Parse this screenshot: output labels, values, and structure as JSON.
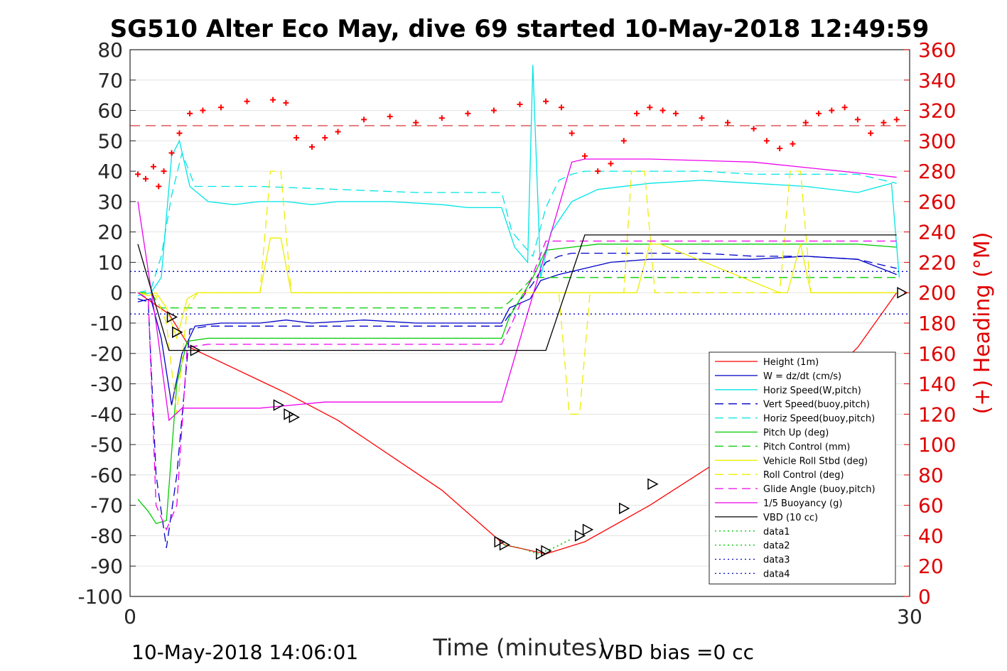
{
  "chart_data": {
    "type": "line",
    "title": "SG510 Alter Eco May, dive 69 started 10-May-2018 12:49:59",
    "xlabel": "Time (minutes)",
    "ylabel": "",
    "y2label": "(+) Heading (°M)",
    "xlim": [
      0,
      30
    ],
    "ylim": [
      -100,
      80
    ],
    "y2lim": [
      0,
      360
    ],
    "xticks": [
      0,
      30
    ],
    "yticks": [
      80,
      70,
      60,
      50,
      40,
      30,
      20,
      10,
      0,
      -10,
      -20,
      -30,
      -40,
      -50,
      -60,
      -70,
      -80,
      -90,
      -100
    ],
    "y2ticks": [
      360,
      340,
      320,
      300,
      280,
      260,
      240,
      220,
      200,
      180,
      160,
      140,
      120,
      100,
      80,
      60,
      40,
      20,
      0
    ],
    "grid": true,
    "legend_position": "bottom-right",
    "heading_reference": 310,
    "series": [
      {
        "name": "Height (1m)",
        "color": "#ff0000",
        "style": "solid",
        "x": [
          0.3,
          1.5,
          2.3,
          6.0,
          8.0,
          12.0,
          14.4,
          16.0,
          17.5,
          20.0,
          24.0,
          26.0,
          28.0,
          29.5
        ],
        "y": [
          0,
          -7,
          -18,
          -33,
          -42,
          -65,
          -83,
          -86,
          -82,
          -70,
          -48,
          -35,
          -18,
          0
        ]
      },
      {
        "name": "W = dz/dt (cm/s)",
        "color": "#0000c8",
        "style": "solid",
        "x": [
          0.3,
          0.8,
          1.2,
          1.6,
          2.0,
          2.5,
          3.5,
          5.0,
          6.0,
          7.0,
          9.0,
          11.0,
          13.0,
          14.3,
          14.6,
          15.4,
          15.8,
          16.5,
          17.5,
          18.5,
          20.0,
          22.0,
          24.0,
          26.0,
          28.0,
          29.5
        ],
        "y": [
          -3,
          -2,
          -15,
          -37,
          -20,
          -11,
          -10,
          -10,
          -9,
          -10,
          -9,
          -10,
          -10,
          -10,
          -5,
          -2,
          4,
          6,
          8,
          10,
          11,
          11,
          11,
          12,
          11,
          6
        ]
      },
      {
        "name": "Horiz Speed(W,pitch)",
        "color": "#00e5e5",
        "style": "solid",
        "x": [
          0.3,
          0.8,
          1.2,
          1.6,
          1.9,
          2.3,
          3.0,
          4.0,
          5.0,
          6.0,
          7.0,
          8.0,
          10.0,
          12.0,
          13.0,
          14.3,
          14.8,
          15.3,
          15.5,
          15.8,
          16.2,
          17.0,
          18.0,
          20.0,
          22.0,
          24.0,
          26.0,
          28.0,
          29.3,
          29.6
        ],
        "y": [
          -1,
          0,
          5,
          45,
          50,
          35,
          30,
          29,
          30,
          30,
          29,
          30,
          30,
          29,
          28,
          28,
          15,
          10,
          75,
          5,
          20,
          30,
          34,
          36,
          37,
          36,
          35,
          33,
          36,
          5
        ]
      },
      {
        "name": "Vert Speed(buoy,pitch)",
        "color": "#0000c8",
        "style": "dashed",
        "x": [
          0.3,
          0.7,
          1.0,
          1.4,
          1.8,
          2.3,
          3.0,
          5.0,
          8.0,
          11.0,
          13.0,
          14.3,
          14.7,
          15.5,
          16.0,
          16.5,
          17.0,
          18.0,
          20.0,
          22.0,
          24.0,
          26.0,
          28.0,
          29.5
        ],
        "y": [
          -2,
          -3,
          -60,
          -84,
          -60,
          -12,
          -11,
          -11,
          -11,
          -11,
          -11,
          -11,
          -6,
          3,
          10,
          12,
          13,
          13,
          13,
          13,
          12,
          12,
          11,
          8
        ]
      },
      {
        "name": "Horiz Speed(buoy,pitch)",
        "color": "#00e5e5",
        "style": "dashed",
        "x": [
          0.3,
          0.8,
          1.2,
          1.6,
          2.0,
          2.5,
          3.0,
          5.0,
          8.0,
          11.0,
          13.0,
          14.3,
          14.7,
          15.5,
          16.0,
          16.5,
          17.0,
          17.5,
          18.0,
          20.0,
          22.0,
          24.0,
          26.0,
          28.0,
          29.5
        ],
        "y": [
          0,
          1,
          12,
          32,
          46,
          35,
          35,
          35,
          34,
          33,
          33,
          33,
          20,
          12,
          28,
          37,
          39,
          40,
          40,
          40,
          40,
          39,
          39,
          39,
          36
        ]
      },
      {
        "name": "Pitch Up (deg)",
        "color": "#00cc00",
        "style": "solid",
        "x": [
          0.3,
          0.7,
          1.0,
          1.4,
          1.8,
          2.2,
          3.0,
          5.0,
          8.0,
          11.0,
          13.0,
          14.3,
          14.6,
          15.5,
          16.0,
          17.0,
          18.0,
          20.0,
          22.0,
          24.0,
          26.0,
          28.0,
          29.5
        ],
        "y": [
          -68,
          -72,
          -76,
          -75,
          -30,
          -16,
          -15,
          -15,
          -15,
          -15,
          -15,
          -15,
          -8,
          5,
          14,
          15,
          16,
          16,
          16,
          16,
          16,
          16,
          15
        ]
      },
      {
        "name": "Pitch Control (mm)",
        "color": "#00cc00",
        "style": "dashed",
        "x": [
          0.3,
          0.8,
          1.2,
          1.6,
          2.0,
          3.0,
          6.0,
          10.0,
          14.3,
          14.6,
          15.5,
          16.5,
          20.0,
          24.0,
          28.0,
          29.5
        ],
        "y": [
          0,
          0,
          -5,
          -5,
          -5,
          -5,
          -5,
          -5,
          -5,
          -3,
          5,
          5,
          5,
          5,
          5,
          5
        ]
      },
      {
        "name": "Vehicle Roll Stbd (deg)",
        "color": "#eeee00",
        "style": "solid",
        "x": [
          0.3,
          0.7,
          1.0,
          1.4,
          1.8,
          2.2,
          2.6,
          5.0,
          5.4,
          5.8,
          6.2,
          6.6,
          10.0,
          14.0,
          15.5,
          19.0,
          19.5,
          20.0,
          20.4,
          25.0,
          25.3,
          25.8,
          26.2,
          29.5
        ],
        "y": [
          0,
          -1,
          0,
          -5,
          -15,
          -2,
          0,
          0,
          18,
          18,
          0,
          0,
          0,
          0,
          0,
          0,
          0,
          16,
          16,
          0,
          0,
          16,
          0,
          0
        ]
      },
      {
        "name": "Roll Control (deg)",
        "color": "#eeee00",
        "style": "dashed",
        "x": [
          0.3,
          1.0,
          1.4,
          1.8,
          2.2,
          2.6,
          5.0,
          5.4,
          5.8,
          6.2,
          10.0,
          14.0,
          16.5,
          16.9,
          17.3,
          17.7,
          18.2,
          19.0,
          19.3,
          19.8,
          20.2,
          25.0,
          25.4,
          25.8,
          26.2,
          29.5
        ],
        "y": [
          0,
          -1,
          -10,
          -40,
          -5,
          0,
          0,
          40,
          40,
          0,
          0,
          0,
          0,
          -40,
          -40,
          0,
          0,
          0,
          40,
          40,
          0,
          0,
          40,
          40,
          0,
          0
        ]
      },
      {
        "name": "Glide Angle (buoy,pitch)",
        "color": "#ee00ee",
        "style": "dashed",
        "x": [
          0.3,
          0.7,
          1.0,
          1.4,
          1.8,
          2.2,
          3.0,
          5.0,
          8.0,
          11.0,
          13.0,
          14.3,
          14.7,
          15.5,
          16.0,
          17.0,
          18.0,
          20.0,
          22.0,
          24.0,
          26.0,
          28.0,
          29.5
        ],
        "y": [
          0,
          -2,
          -70,
          -78,
          -70,
          -18,
          -17,
          -17,
          -17,
          -17,
          -17,
          -17,
          -10,
          6,
          17,
          17,
          17,
          17,
          17,
          17,
          17,
          17,
          17
        ]
      },
      {
        "name": "1/5 Buoyancy (g)",
        "color": "#ee00ee",
        "style": "solid",
        "x": [
          0.3,
          1.0,
          1.5,
          2.0,
          5.0,
          7.5,
          14.3,
          17.0,
          17.5,
          20.0,
          24.0,
          28.5,
          29.5
        ],
        "y": [
          30,
          -10,
          -42,
          -38,
          -38,
          -36,
          -36,
          43,
          44,
          44,
          43,
          39,
          38
        ]
      },
      {
        "name": "VBD (10 cc)",
        "color": "#000000",
        "style": "solid",
        "x": [
          0.3,
          1.5,
          2.2,
          14.3,
          16.0,
          17.5,
          20.0,
          24.0,
          28.0,
          29.5
        ],
        "y": [
          16,
          -19,
          -19,
          -19,
          -19,
          19,
          19,
          19,
          19,
          19
        ]
      },
      {
        "name": "data1",
        "color": "#00cc00",
        "style": "dotted",
        "x": [
          14.4,
          15.0,
          15.7,
          16.3,
          17.0
        ],
        "y": [
          -83,
          -84,
          -86,
          -84,
          -81
        ]
      },
      {
        "name": "data2",
        "color": "#00cc00",
        "style": "dotted",
        "x": [
          14.4,
          15.0,
          15.7,
          16.3,
          17.0
        ],
        "y": [
          -83,
          -84,
          -86,
          -84,
          -81
        ]
      },
      {
        "name": "data3",
        "color": "#0000c8",
        "style": "dotted",
        "x": [
          0,
          30
        ],
        "y": [
          7,
          7
        ]
      },
      {
        "name": "data4",
        "color": "#0000c8",
        "style": "dotted",
        "x": [
          0,
          30
        ],
        "y": [
          -7,
          -7
        ]
      }
    ],
    "heading": {
      "name": "(+) Heading",
      "color": "#ff0000",
      "marker": "+",
      "x": [
        0.3,
        0.6,
        0.9,
        1.1,
        1.3,
        1.6,
        1.9,
        2.3,
        2.8,
        3.5,
        4.5,
        5.5,
        6.0,
        6.4,
        7.0,
        7.5,
        8.0,
        9.0,
        10.0,
        11.0,
        12.0,
        13.0,
        14.0,
        15.0,
        16.0,
        16.6,
        17.0,
        17.5,
        18.0,
        18.5,
        19.0,
        19.5,
        20.0,
        20.5,
        21.0,
        22.0,
        23.0,
        24.0,
        24.5,
        25.0,
        25.5,
        26.0,
        26.5,
        27.0,
        27.5,
        28.0,
        28.5,
        29.0,
        29.5
      ],
      "y": [
        278,
        275,
        283,
        270,
        280,
        292,
        305,
        318,
        320,
        322,
        326,
        327,
        325,
        302,
        296,
        302,
        306,
        314,
        316,
        312,
        315,
        318,
        320,
        324,
        326,
        322,
        305,
        290,
        280,
        285,
        300,
        318,
        322,
        320,
        318,
        315,
        312,
        308,
        300,
        295,
        298,
        312,
        318,
        320,
        322,
        314,
        305,
        312,
        314
      ]
    },
    "markers": {
      "symbol": "triangle",
      "x": [
        1.6,
        1.8,
        2.5,
        5.7,
        6.1,
        6.3,
        14.2,
        14.4,
        15.8,
        16.0,
        17.3,
        17.6,
        19.0,
        20.1,
        29.7
      ],
      "y": [
        -8,
        -13,
        -19,
        -37,
        -40,
        -41,
        -82,
        -83,
        -86,
        -85,
        -80,
        -78,
        -71,
        -63,
        0
      ]
    },
    "annotations": [
      "10-May-2018 14:06:01",
      "VBD bias =0 cc"
    ]
  }
}
